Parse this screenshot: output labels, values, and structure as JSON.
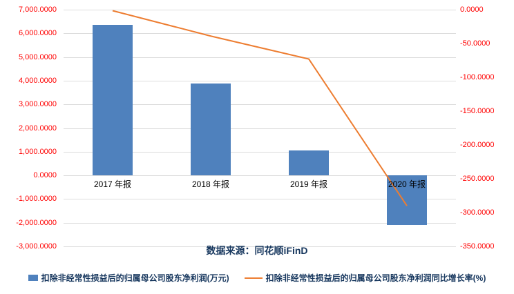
{
  "chart_data": {
    "type": "bar+line",
    "title": "",
    "source": "数据来源：同花顺iFinD",
    "categories": [
      "2017 年报",
      "2018 年报",
      "2019 年报",
      "2020 年报"
    ],
    "series": [
      {
        "name": "扣除非经常性损益后的归属母公司股东净利润(万元)",
        "type": "bar",
        "axis": "left",
        "color": "#4f81bd",
        "values": [
          6350,
          3880,
          1060,
          -2100
        ]
      },
      {
        "name": "扣除非经常性损益后的归属母公司股东净利润同比增长率(%)",
        "type": "line",
        "axis": "right",
        "color": "#ed7d31",
        "values": [
          -1.5,
          -39,
          -73,
          -290
        ]
      }
    ],
    "axis_label_color": "#ff0000",
    "gridline_color": "#dcdcdc",
    "legend_position": "bottom",
    "left_axis": {
      "min": -3000,
      "max": 7000,
      "step": 1000,
      "ticks": [
        {
          "value": 7000,
          "label": "7,000.0000"
        },
        {
          "value": 6000,
          "label": "6,000.0000"
        },
        {
          "value": 5000,
          "label": "5,000.0000"
        },
        {
          "value": 4000,
          "label": "4,000.0000"
        },
        {
          "value": 3000,
          "label": "3,000.0000"
        },
        {
          "value": 2000,
          "label": "2,000.0000"
        },
        {
          "value": 1000,
          "label": "1,000.0000"
        },
        {
          "value": 0,
          "label": "0.0000"
        },
        {
          "value": -1000,
          "label": "-1,000.0000"
        },
        {
          "value": -2000,
          "label": "-2,000.0000"
        },
        {
          "value": -3000,
          "label": "-3,000.0000"
        }
      ]
    },
    "right_axis": {
      "min": -350,
      "max": 0,
      "step": 50,
      "ticks": [
        {
          "value": 0,
          "label": "0.0000"
        },
        {
          "value": -50,
          "label": "-50.0000"
        },
        {
          "value": -100,
          "label": "-100.0000"
        },
        {
          "value": -150,
          "label": "-150.0000"
        },
        {
          "value": -200,
          "label": "-200.0000"
        },
        {
          "value": -250,
          "label": "-250.0000"
        },
        {
          "value": -300,
          "label": "-300.0000"
        },
        {
          "value": -350,
          "label": "-350.0000"
        }
      ]
    }
  }
}
